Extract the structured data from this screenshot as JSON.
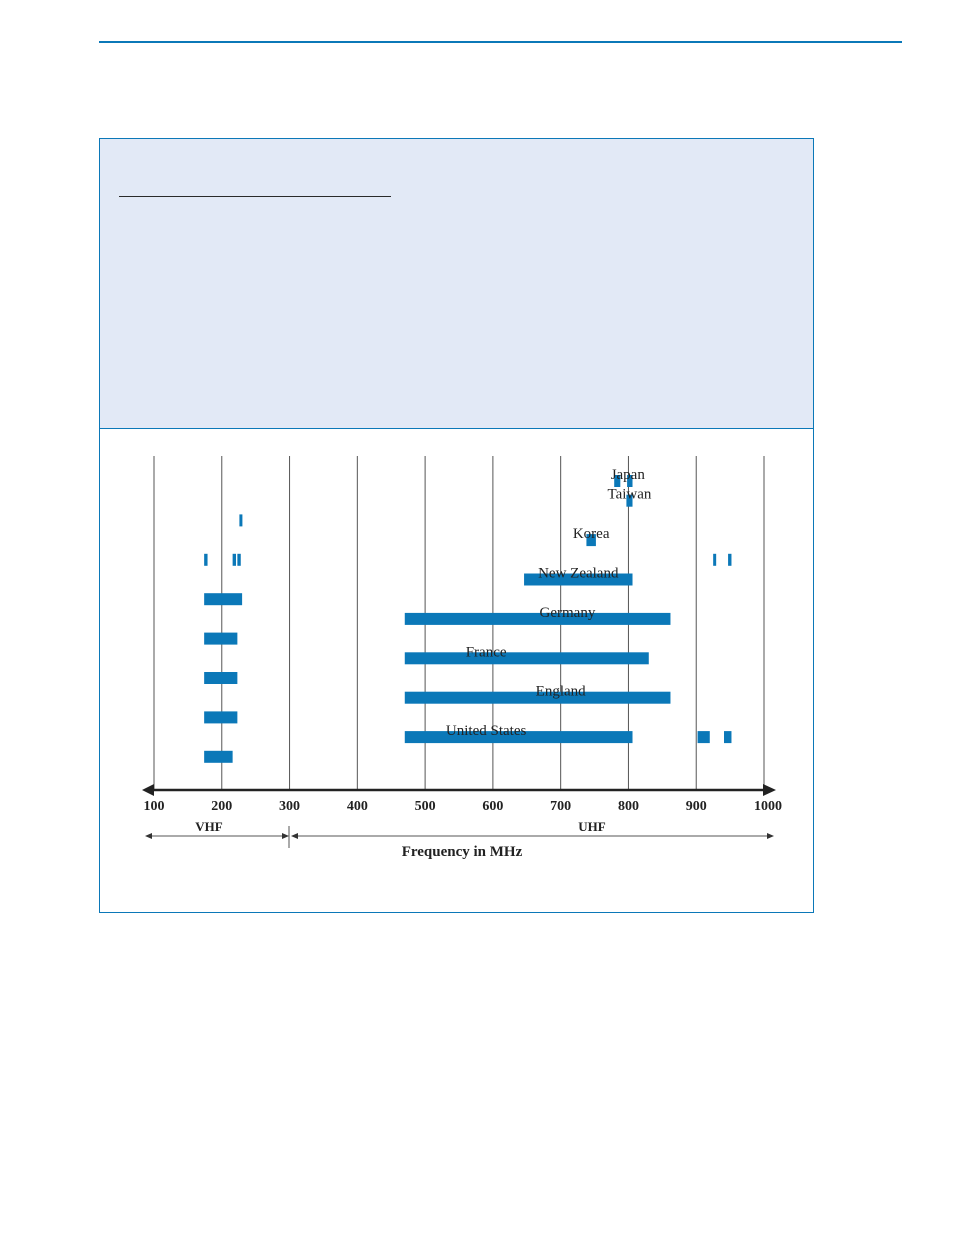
{
  "chart_data": {
    "type": "bar",
    "title": "",
    "xlabel": "Frequency in MHz",
    "ylabel": "",
    "xlim": [
      100,
      1000
    ],
    "x_ticks": [
      100,
      200,
      300,
      400,
      500,
      600,
      700,
      800,
      900,
      1000
    ],
    "grid": true,
    "bands": [
      {
        "name": "VHF",
        "range": [
          100,
          300
        ]
      },
      {
        "name": "UHF",
        "range": [
          300,
          1000
        ]
      }
    ],
    "colors": {
      "bar": "#0b78b8",
      "border": "#0b78b8",
      "header": "#e2e9f6"
    },
    "rows": [
      {
        "name": "Japan",
        "ranges": [
          [
            779,
            788
          ],
          [
            798,
            806
          ]
        ]
      },
      {
        "name": "Taiwan",
        "ranges": [
          [
            797,
            806
          ]
        ]
      },
      {
        "name": "",
        "ranges": [
          [
            226,
            230
          ]
        ]
      },
      {
        "name": "Korea",
        "ranges": [
          [
            738,
            752
          ]
        ]
      },
      {
        "name": "",
        "ranges": [
          [
            174,
            179
          ],
          [
            216,
            221
          ],
          [
            223,
            228
          ],
          [
            925,
            929
          ],
          [
            947,
            952
          ]
        ]
      },
      {
        "name": "New Zealand",
        "ranges": [
          [
            646,
            806
          ]
        ]
      },
      {
        "name": "",
        "ranges": [
          [
            174,
            230
          ]
        ]
      },
      {
        "name": "Germany",
        "ranges": [
          [
            470,
            862
          ]
        ]
      },
      {
        "name": "",
        "ranges": [
          [
            174,
            223
          ]
        ]
      },
      {
        "name": "France",
        "ranges": [
          [
            470,
            830
          ]
        ]
      },
      {
        "name": "",
        "ranges": [
          [
            174,
            223
          ]
        ]
      },
      {
        "name": "England",
        "ranges": [
          [
            470,
            862
          ]
        ]
      },
      {
        "name": "",
        "ranges": [
          [
            174,
            223
          ]
        ]
      },
      {
        "name": "United States",
        "ranges": [
          [
            470,
            806
          ],
          [
            902,
            920
          ],
          [
            941,
            952
          ]
        ]
      },
      {
        "name": "",
        "ranges": [
          [
            174,
            216
          ]
        ]
      }
    ]
  }
}
